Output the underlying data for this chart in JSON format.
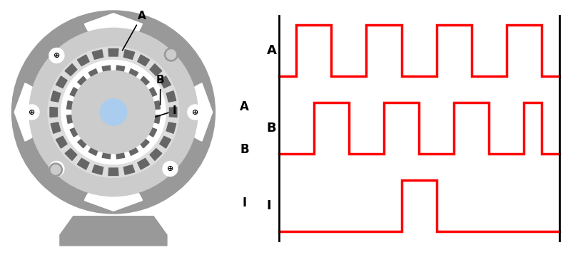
{
  "bg_color": "#ffffff",
  "motor_color": "#999999",
  "motor_light": "#bbbbbb",
  "motor_lighter": "#cccccc",
  "motor_disk": "#dddddd",
  "rotor_color": "#666666",
  "shaft_color": "#aaccee",
  "signal_color": "#ff0000",
  "line_color": "#000000",
  "label_A": "A",
  "label_B": "B",
  "label_I": "I",
  "signal_linewidth": 2.5,
  "border_linewidth": 2.0,
  "total_steps": 16,
  "A_pattern": [
    0,
    1,
    1,
    0,
    0,
    1,
    1,
    0,
    0,
    1,
    1,
    0,
    0,
    1,
    1,
    0
  ],
  "B_pattern": [
    0,
    0,
    1,
    1,
    0,
    0,
    1,
    1,
    0,
    0,
    1,
    1,
    0,
    0,
    1,
    0
  ],
  "I_pattern": [
    0,
    0,
    0,
    0,
    0,
    0,
    0,
    1,
    1,
    0,
    0,
    0,
    0,
    0,
    0,
    0
  ]
}
